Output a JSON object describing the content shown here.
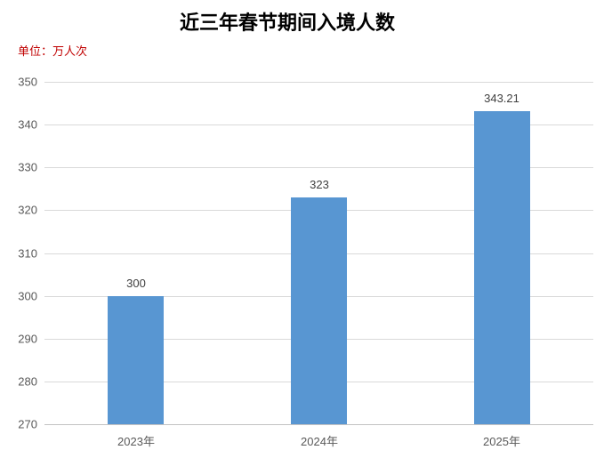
{
  "page": {
    "title": "近三年春节期间入境人数",
    "unit_label": "单位：万人次"
  },
  "colors": {
    "bar": "#5896d2",
    "unit_text": "#c00000",
    "gridline": "#d9d9d9",
    "axis_line": "#c3c3c3",
    "tick_text": "#595959",
    "data_label_text": "#3f3f3f",
    "title_text": "#000000",
    "background": "#ffffff"
  },
  "chart_data": {
    "type": "bar",
    "title": "近三年春节期间入境人数",
    "unit": "单位：万人次",
    "categories": [
      "2023年",
      "2024年",
      "2025年"
    ],
    "values": [
      300,
      323,
      343.21
    ],
    "data_labels": [
      "300",
      "323",
      "343.21"
    ],
    "xlabel": "",
    "ylabel": "",
    "ylim": [
      270,
      350
    ],
    "yticks": [
      270,
      280,
      290,
      300,
      310,
      320,
      330,
      340,
      350
    ],
    "grid": true,
    "legend": false,
    "bar_color": "#5896d2"
  }
}
